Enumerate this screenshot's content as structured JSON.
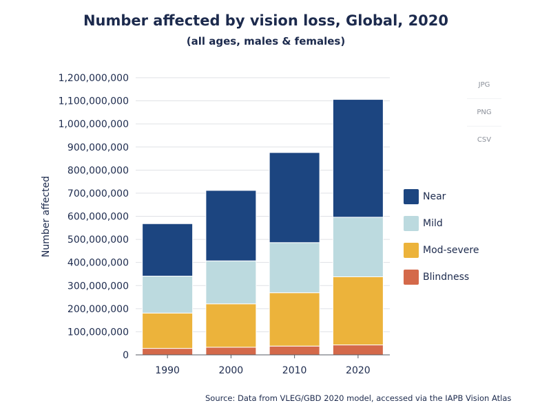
{
  "title": "Number affected by vision loss, Global, 2020",
  "subtitle": "(all ages, males & females)",
  "source": "Source: Data from VLEG/GBD 2020 model, accessed via the IAPB Vision Atlas",
  "export_menu": [
    "JPG",
    "PNG",
    "CSV"
  ],
  "chart_data": {
    "type": "bar",
    "stacked": true,
    "categories": [
      "1990",
      "2000",
      "2010",
      "2020"
    ],
    "series": [
      {
        "name": "Blindness",
        "color": "#d4694a",
        "values": [
          28000000,
          33000000,
          38000000,
          43000000
        ]
      },
      {
        "name": "Mod-severe",
        "color": "#ecb33b",
        "values": [
          153000000,
          188000000,
          231000000,
          295000000
        ]
      },
      {
        "name": "Mild",
        "color": "#bcdadf",
        "values": [
          160000000,
          186000000,
          217000000,
          258000000
        ]
      },
      {
        "name": "Near",
        "color": "#1c4580",
        "values": [
          227000000,
          305000000,
          390000000,
          510000000
        ]
      }
    ],
    "legend_order": [
      "Near",
      "Mild",
      "Mod-severe",
      "Blindness"
    ],
    "legend_position": "right",
    "ylabel": "Number affected",
    "xlabel": "",
    "ylim": [
      0,
      1200000000
    ],
    "yticks": [
      "0",
      "100,000,000",
      "200,000,000",
      "300,000,000",
      "400,000,000",
      "500,000,000",
      "600,000,000",
      "700,000,000",
      "800,000,000",
      "900,000,000",
      "1,000,000,000",
      "1,100,000,000",
      "1,200,000,000"
    ],
    "grid": true
  }
}
